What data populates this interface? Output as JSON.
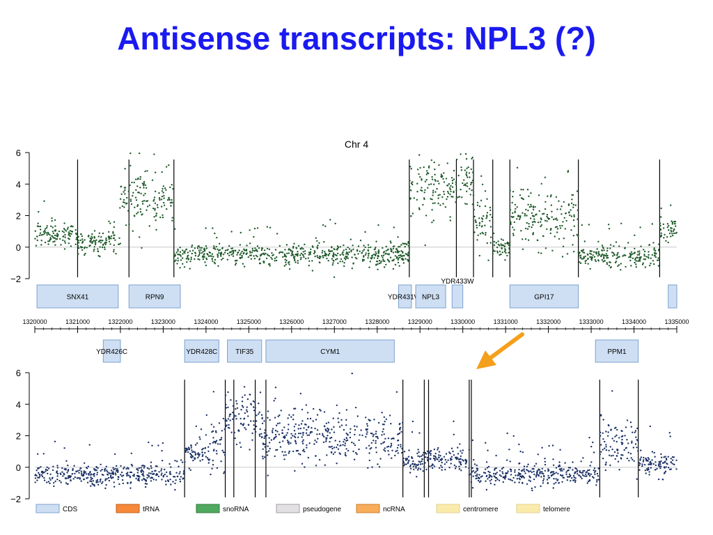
{
  "slide": {
    "title": "Antisense transcripts: NPL3 (?)"
  },
  "colors": {
    "title": "#1a1af0",
    "top_points": "#1f5a2a",
    "bottom_points": "#1c3266",
    "feature_fill": "#cfdff3",
    "feature_stroke": "#7aa0cf",
    "arrow": "#f5a01c",
    "zero_line": "#c8c8c8"
  },
  "chart_data": {
    "type": "scatter",
    "title": "Chr 4",
    "x_ticks": [
      1320000,
      1321000,
      1322000,
      1323000,
      1324000,
      1325000,
      1326000,
      1327000,
      1328000,
      1329000,
      1330000,
      1331000,
      1332000,
      1333000,
      1334000,
      1335000
    ],
    "xlim": [
      1320000,
      1335000
    ],
    "ylim": [
      -2,
      6
    ],
    "y_ticks": [
      -2,
      0,
      2,
      4,
      6
    ],
    "panels": [
      {
        "name": "top",
        "segments": [
          {
            "x0": 1320000,
            "x1": 1321000,
            "level": 0.8
          },
          {
            "x0": 1321000,
            "x1": 1322000,
            "level": 0.3
          },
          {
            "x0": 1322000,
            "x1": 1323250,
            "level": 3.0
          },
          {
            "x0": 1323250,
            "x1": 1328750,
            "level": -0.5
          },
          {
            "x0": 1328750,
            "x1": 1329850,
            "level": 3.5
          },
          {
            "x0": 1329850,
            "x1": 1330250,
            "level": 4.2
          },
          {
            "x0": 1330250,
            "x1": 1330700,
            "level": 1.5
          },
          {
            "x0": 1330700,
            "x1": 1331100,
            "level": 0.0
          },
          {
            "x0": 1331100,
            "x1": 1332700,
            "level": 1.8
          },
          {
            "x0": 1332700,
            "x1": 1334600,
            "level": -0.6
          },
          {
            "x0": 1334600,
            "x1": 1335000,
            "level": 1.0
          }
        ],
        "boundaries": [
          1321000,
          1322200,
          1323250,
          1328750,
          1329850,
          1330250,
          1330700,
          1331100,
          1332700,
          1334600
        ]
      },
      {
        "name": "bottom",
        "segments": [
          {
            "x0": 1320000,
            "x1": 1323500,
            "level": -0.5
          },
          {
            "x0": 1323500,
            "x1": 1324100,
            "level": 0.8
          },
          {
            "x0": 1324100,
            "x1": 1324450,
            "level": 1.5
          },
          {
            "x0": 1324450,
            "x1": 1325300,
            "level": 3.2
          },
          {
            "x0": 1325300,
            "x1": 1328600,
            "level": 1.8
          },
          {
            "x0": 1328600,
            "x1": 1330150,
            "level": 0.4
          },
          {
            "x0": 1330150,
            "x1": 1333200,
            "level": -0.5
          },
          {
            "x0": 1333200,
            "x1": 1334100,
            "level": 1.2
          },
          {
            "x0": 1334100,
            "x1": 1335000,
            "level": 0.2
          }
        ],
        "boundaries": [
          1323500,
          1324450,
          1324650,
          1325150,
          1325400,
          1328600,
          1329100,
          1329200,
          1330150,
          1330200,
          1333200,
          1334100
        ]
      }
    ],
    "features_watson": [
      {
        "name": "SNX41",
        "start": 1320050,
        "end": 1321950
      },
      {
        "name": "RPN9",
        "start": 1322200,
        "end": 1323400
      },
      {
        "name": "YDR431W",
        "start": 1328500,
        "end": 1328800
      },
      {
        "name": "NPL3",
        "start": 1328900,
        "end": 1329600
      },
      {
        "name": "YDR433W",
        "start": 1329750,
        "end": 1330000
      },
      {
        "name": "GPI17",
        "start": 1331100,
        "end": 1332700
      },
      {
        "name": "",
        "start": 1334800,
        "end": 1335000
      }
    ],
    "features_crick": [
      {
        "name": "YDR426C",
        "start": 1321600,
        "end": 1322000
      },
      {
        "name": "YDR428C",
        "start": 1323500,
        "end": 1324300
      },
      {
        "name": "TIF35",
        "start": 1324500,
        "end": 1325300
      },
      {
        "name": "CYM1",
        "start": 1325400,
        "end": 1328400
      },
      {
        "name": "PPM1",
        "start": 1333100,
        "end": 1334100
      }
    ],
    "legend": [
      {
        "label": "CDS",
        "color": "#cfdff3",
        "stroke": "#7aa0cf"
      },
      {
        "label": "tRNA",
        "color": "#f7893b",
        "stroke": "#c06020"
      },
      {
        "label": "snoRNA",
        "color": "#4faa5f",
        "stroke": "#2f7a3f"
      },
      {
        "label": "pseudogene",
        "color": "#e2e0e2",
        "stroke": "#a0a0a0"
      },
      {
        "label": "ncRNA",
        "color": "#f9ad5a",
        "stroke": "#c88030"
      },
      {
        "label": "centromere",
        "color": "#fbebaa",
        "stroke": "#e0d090"
      },
      {
        "label": "telomere",
        "color": "#fbebaa",
        "stroke": "#e0d090"
      }
    ]
  }
}
